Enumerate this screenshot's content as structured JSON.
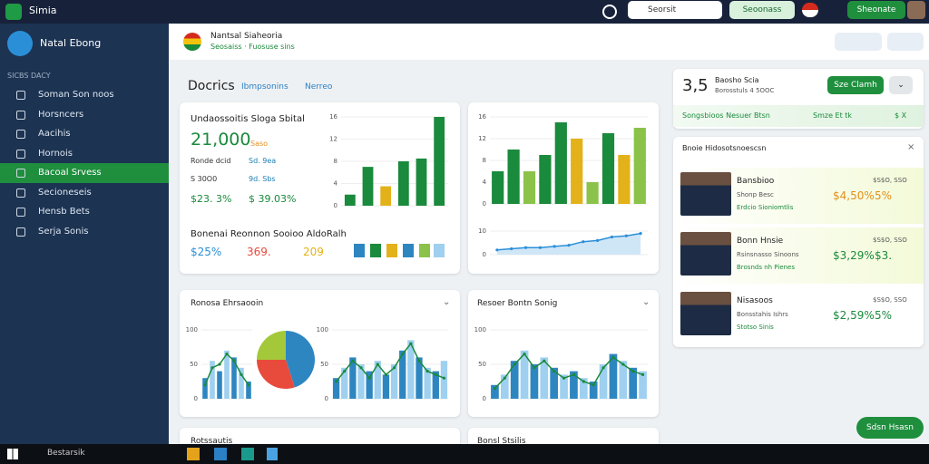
{
  "topbar": {
    "app": "Simia",
    "search": "Seorsit",
    "button1": "Seoonass",
    "button2": "Sheonate"
  },
  "sidebar": {
    "title": "Natal Ebong",
    "section": "SICBS DACY",
    "items": [
      "Soman Son noos",
      "Horsncers",
      "Aacihis",
      "Hornois",
      "Bacoal Srvess",
      "Secioneseis",
      "Hensb Bets",
      "Serja Sonis"
    ],
    "active": 4
  },
  "header": {
    "title": "Nantsal Siaheoria",
    "subtitle": "Seosaiss · Fuosuse sins"
  },
  "page": {
    "title": "Docrics",
    "tabs": [
      "Ibmpsonins",
      "Nerreo"
    ]
  },
  "card1": {
    "title": "Undaossoitis Sloga Sbital",
    "big": "21,000",
    "tag": "Saso",
    "rows": [
      [
        "Ronde dcid",
        "Sd. 9ea"
      ],
      [
        "S 30O0",
        "9d. Sbs"
      ],
      [
        "$23. 3%",
        "$ 39.03%"
      ]
    ],
    "subtitle": "Bonenai Reonnon Sooioo AldoRalh",
    "stats": [
      "$25%",
      "369.",
      "209"
    ],
    "chart": {
      "type": "bar",
      "values": [
        2,
        7,
        3.5,
        8,
        8.5,
        16
      ],
      "colors": [
        "#1a8a3c",
        "#1a8a3c",
        "#e3b21a",
        "#1a8a3c",
        "#1a8a3c",
        "#1a8a3c"
      ],
      "ylim": [
        0,
        16
      ],
      "yticks": [
        0,
        4,
        8,
        12,
        16
      ]
    }
  },
  "card2": {
    "chart": {
      "type": "bar",
      "values": [
        6,
        10,
        6,
        9,
        15,
        12,
        4,
        13,
        9,
        14
      ],
      "colors": [
        "#1a8a3c",
        "#1a8a3c",
        "#8bc34a",
        "#1a8a3c",
        "#1a8a3c",
        "#e3b21a",
        "#8bc34a",
        "#1a8a3c",
        "#e3b21a",
        "#8bc34a"
      ],
      "ylim": [
        0,
        16
      ],
      "yticks": [
        0,
        4,
        8,
        12,
        16
      ]
    },
    "trend": {
      "type": "line",
      "values": [
        2,
        2.5,
        3,
        3,
        3.5,
        4,
        5.5,
        6,
        7.5,
        8,
        9
      ],
      "ylim": [
        0,
        10
      ],
      "yticks": [
        0,
        10
      ]
    }
  },
  "card3": {
    "title": "Ronosa Ehrsaooin",
    "chart": {
      "type": "bar",
      "values": [
        30,
        55,
        40,
        70,
        60,
        45,
        25
      ],
      "trend": [
        20,
        45,
        50,
        65,
        55,
        35,
        20
      ],
      "ylim": [
        0,
        100
      ],
      "yticks": [
        0,
        50,
        100
      ]
    },
    "pie": {
      "type": "pie",
      "values": [
        45,
        30,
        25
      ],
      "colors": [
        "#2e86c1",
        "#e84a3c",
        "#a3c93a"
      ]
    },
    "chart2": {
      "type": "bar",
      "values": [
        30,
        45,
        60,
        50,
        40,
        55,
        35,
        50,
        70,
        85,
        60,
        45,
        40,
        55
      ],
      "trend": [
        25,
        40,
        55,
        45,
        30,
        50,
        35,
        45,
        65,
        80,
        55,
        40,
        35,
        30
      ],
      "ylim": [
        0,
        100
      ],
      "yticks": [
        0,
        50,
        100
      ]
    }
  },
  "card4": {
    "title": "Resoer Bontn Sonig",
    "chart": {
      "type": "bar",
      "values": [
        20,
        35,
        55,
        70,
        50,
        60,
        45,
        35,
        40,
        30,
        25,
        50,
        65,
        55,
        45,
        40
      ],
      "trend": [
        15,
        30,
        50,
        65,
        45,
        55,
        40,
        30,
        35,
        25,
        20,
        45,
        60,
        50,
        40,
        35
      ],
      "ylim": [
        0,
        100
      ],
      "yticks": [
        0,
        50,
        100
      ]
    }
  },
  "summary": {
    "big": "3,5",
    "title": "Baosho Scia",
    "sub": "Borosstuls 4 5OOC",
    "button": "Sze Clamh",
    "strip": [
      "Songsbioos Nesuer Btsn",
      "Smze Et tk",
      "$ X"
    ]
  },
  "list": {
    "title": "Bnoie Hidosotsnoescsn",
    "rows": [
      {
        "name": "Bansbioo",
        "sub": "Shonp Besc",
        "note": "Erdcio Sioniomtlis",
        "top": "$S$O, SSO",
        "value": "$4,50%",
        "pct": "5%"
      },
      {
        "name": "Bonn Hnsie",
        "sub": "Rsinsnasso Sinoons",
        "note": "Brosnds nh Pienes",
        "top": "$S$O, SSO",
        "value": "$3,29%",
        "pct": "$3."
      },
      {
        "name": "Nisasoos",
        "sub": "Bonsstahis Ishrs",
        "note": "Stotso Sinis",
        "top": "$S$O, SSO",
        "value": "$2,59%",
        "pct": "5%"
      }
    ]
  },
  "bottom": {
    "cards": [
      "Rotssautis",
      "Bonsl Stsilis"
    ],
    "button": "Sdsn Hsasn"
  },
  "taskbar": {
    "search": "Bestarsik"
  }
}
